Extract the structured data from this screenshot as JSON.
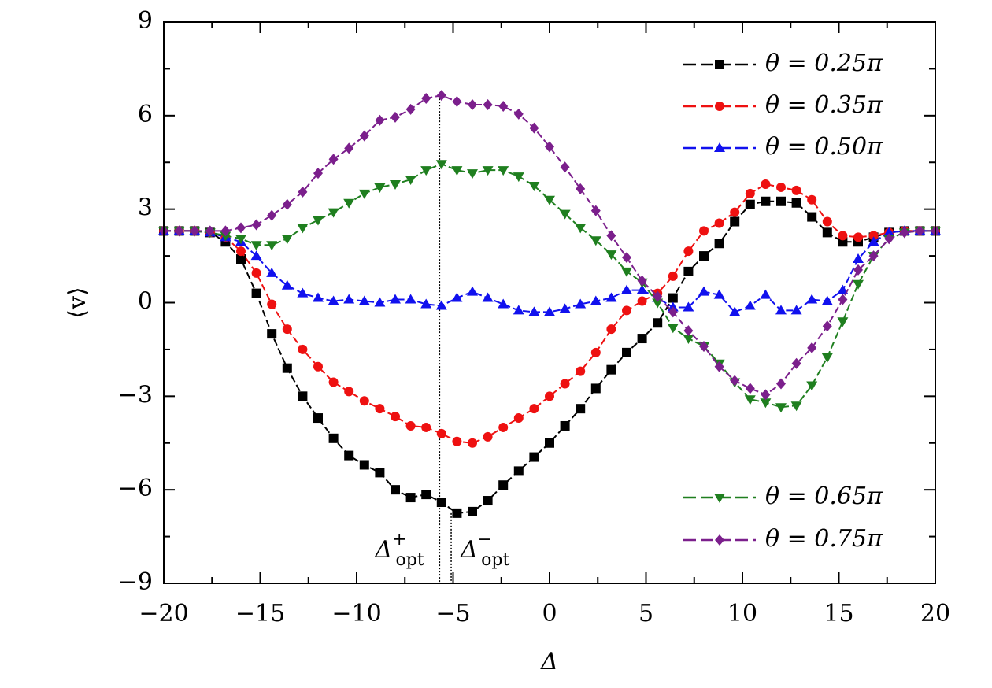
{
  "chart_data": {
    "type": "line",
    "xlabel": "Δ",
    "ylabel": "⟨v⟩",
    "xlim": [
      -20,
      20
    ],
    "ylim": [
      -9,
      9
    ],
    "xticks": [
      {
        "value": -20,
        "label": "−20"
      },
      {
        "value": -15,
        "label": "−15"
      },
      {
        "value": -10,
        "label": "−10"
      },
      {
        "value": -5,
        "label": "−5"
      },
      0,
      5,
      10,
      15,
      20
    ],
    "yticks": [
      {
        "value": -9,
        "label": "−9"
      },
      {
        "value": -6,
        "label": "−6"
      },
      {
        "value": -3,
        "label": "−3"
      },
      0,
      3,
      6,
      9
    ],
    "x": [
      -20,
      -19.2,
      -18.4,
      -17.6,
      -16.8,
      -16,
      -15.2,
      -14.4,
      -13.6,
      -12.8,
      -12,
      -11.2,
      -10.4,
      -9.6,
      -8.8,
      -8,
      -7.2,
      -6.4,
      -5.6,
      -4.8,
      -4,
      -3.2,
      -2.4,
      -1.6,
      -0.8,
      0,
      0.8,
      1.6,
      2.4,
      3.2,
      4,
      4.8,
      5.6,
      6.4,
      7.2,
      8,
      8.8,
      9.6,
      10.4,
      11.2,
      12,
      12.8,
      13.6,
      14.4,
      15.2,
      16,
      16.8,
      17.6,
      18.4,
      19.2,
      20
    ],
    "series": [
      {
        "name": "θ = 0.25π",
        "color": "#000000",
        "marker": "square",
        "legend": "upper right",
        "values": [
          2.3,
          2.3,
          2.3,
          2.25,
          1.95,
          1.4,
          0.3,
          -1.0,
          -2.1,
          -3.0,
          -3.7,
          -4.35,
          -4.9,
          -5.2,
          -5.45,
          -6.0,
          -6.25,
          -6.15,
          -6.4,
          -6.75,
          -6.7,
          -6.35,
          -5.85,
          -5.4,
          -4.95,
          -4.5,
          -3.95,
          -3.4,
          -2.75,
          -2.15,
          -1.6,
          -1.15,
          -0.65,
          0.15,
          1.0,
          1.5,
          1.9,
          2.6,
          3.15,
          3.25,
          3.25,
          3.2,
          2.75,
          2.25,
          1.95,
          1.95,
          2.1,
          2.25,
          2.3,
          2.3,
          2.3
        ]
      },
      {
        "name": "θ = 0.35π",
        "color": "#ee1111",
        "marker": "circle",
        "legend": "upper right",
        "values": [
          2.3,
          2.3,
          2.3,
          2.25,
          2.1,
          1.65,
          0.95,
          -0.05,
          -0.85,
          -1.5,
          -2.05,
          -2.55,
          -2.85,
          -3.15,
          -3.4,
          -3.65,
          -3.95,
          -4.0,
          -4.2,
          -4.45,
          -4.5,
          -4.3,
          -4.0,
          -3.7,
          -3.4,
          -3.0,
          -2.6,
          -2.2,
          -1.6,
          -0.85,
          -0.25,
          0.05,
          0.3,
          0.85,
          1.65,
          2.3,
          2.55,
          2.9,
          3.5,
          3.8,
          3.7,
          3.6,
          3.3,
          2.6,
          2.15,
          2.1,
          2.15,
          2.25,
          2.3,
          2.3,
          2.3
        ]
      },
      {
        "name": "θ = 0.50π",
        "color": "#1111ee",
        "marker": "triangle-up",
        "legend": "upper right",
        "values": [
          2.3,
          2.3,
          2.3,
          2.25,
          2.1,
          1.95,
          1.5,
          0.95,
          0.55,
          0.3,
          0.15,
          0.05,
          0.1,
          0.05,
          0.0,
          0.1,
          0.1,
          -0.05,
          -0.1,
          0.15,
          0.35,
          0.15,
          -0.05,
          -0.25,
          -0.3,
          -0.3,
          -0.2,
          -0.05,
          0.05,
          0.15,
          0.4,
          0.4,
          0.15,
          -0.15,
          -0.15,
          0.35,
          0.25,
          -0.3,
          -0.1,
          0.25,
          -0.25,
          -0.25,
          0.1,
          0.05,
          0.4,
          1.4,
          1.95,
          2.25,
          2.3,
          2.3,
          2.3
        ]
      },
      {
        "name": "θ = 0.65π",
        "color": "#1f7f1f",
        "marker": "triangle-down",
        "legend": "lower right",
        "values": [
          2.3,
          2.3,
          2.3,
          2.25,
          2.15,
          2.05,
          1.85,
          1.85,
          2.05,
          2.4,
          2.65,
          2.9,
          3.2,
          3.5,
          3.7,
          3.8,
          3.95,
          4.25,
          4.45,
          4.25,
          4.15,
          4.25,
          4.25,
          4.05,
          3.75,
          3.3,
          2.85,
          2.4,
          2.0,
          1.55,
          1.0,
          0.65,
          0.0,
          -0.8,
          -1.15,
          -1.4,
          -1.95,
          -2.55,
          -3.1,
          -3.2,
          -3.35,
          -3.3,
          -2.65,
          -1.75,
          -0.6,
          0.6,
          1.5,
          2.05,
          2.25,
          2.3,
          2.3
        ]
      },
      {
        "name": "θ = 0.75π",
        "color": "#7b1f8c",
        "marker": "diamond",
        "legend": "lower right",
        "values": [
          2.3,
          2.3,
          2.3,
          2.3,
          2.3,
          2.4,
          2.5,
          2.8,
          3.15,
          3.55,
          4.15,
          4.6,
          4.95,
          5.35,
          5.85,
          5.95,
          6.2,
          6.55,
          6.65,
          6.45,
          6.35,
          6.35,
          6.3,
          6.05,
          5.6,
          5.0,
          4.35,
          3.65,
          2.95,
          2.15,
          1.45,
          0.7,
          0.2,
          -0.3,
          -0.9,
          -1.4,
          -2.05,
          -2.5,
          -2.75,
          -2.95,
          -2.6,
          -1.95,
          -1.45,
          -0.75,
          0.1,
          1.05,
          1.5,
          2.05,
          2.25,
          2.3,
          2.3
        ]
      }
    ],
    "annotations": [
      {
        "text": "Δ",
        "sup": "+",
        "sub": "opt",
        "x": -5.7,
        "y": 6.65
      },
      {
        "text": "Δ",
        "sup": "−",
        "sub": "opt",
        "x": -5.1,
        "y": -6.75
      }
    ]
  }
}
